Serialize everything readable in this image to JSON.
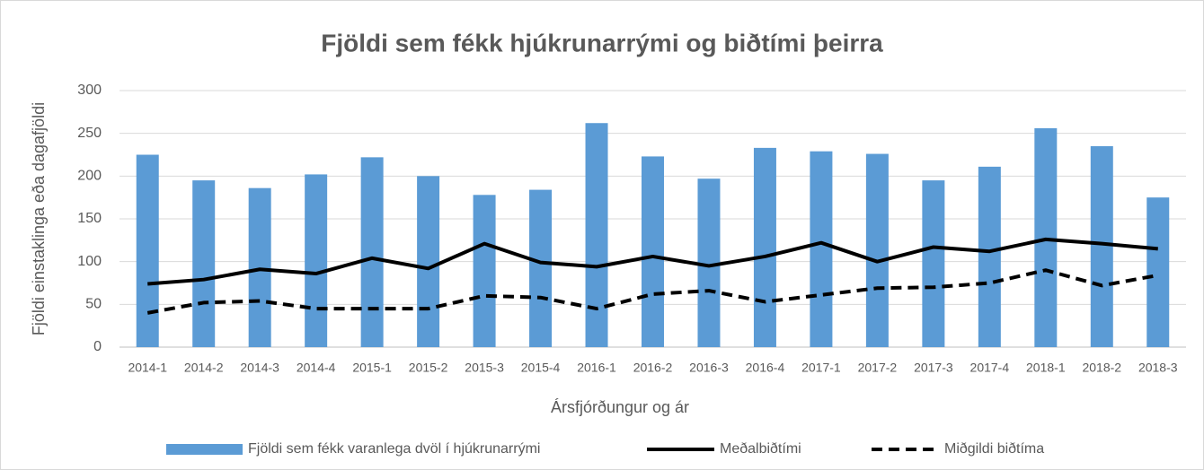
{
  "chart_data": {
    "type": "bar",
    "title": "Fjöldi sem fékk hjúkrunarrými og biðtími þeirra",
    "x_label": "Ársfjórðungur og ár",
    "y_label": "Fjöldi einstaklinga eða dagafjöldi",
    "categories": [
      "2014-1",
      "2014-2",
      "2014-3",
      "2014-4",
      "2015-1",
      "2015-2",
      "2015-3",
      "2015-4",
      "2016-1",
      "2016-2",
      "2016-3",
      "2016-4",
      "2017-1",
      "2017-2",
      "2017-3",
      "2017-4",
      "2018-1",
      "2018-2",
      "2018-3"
    ],
    "series": [
      {
        "name": "Fjöldi sem fékk varanlega dvöl í hjúkrunarrými",
        "type": "bar",
        "color": "#5b9bd5",
        "values": [
          225,
          195,
          186,
          202,
          222,
          200,
          178,
          184,
          262,
          223,
          197,
          233,
          229,
          226,
          195,
          211,
          256,
          235,
          175
        ]
      },
      {
        "name": "Meðalbiðtími",
        "type": "line",
        "color": "#000000",
        "dash": false,
        "values": [
          74,
          79,
          91,
          86,
          104,
          92,
          121,
          99,
          94,
          106,
          95,
          106,
          122,
          100,
          117,
          112,
          126,
          121,
          115
        ]
      },
      {
        "name": "Miðgildi biðtíma",
        "type": "line",
        "color": "#000000",
        "dash": true,
        "values": [
          40,
          52,
          54,
          45,
          45,
          45,
          60,
          58,
          45,
          62,
          66,
          53,
          61,
          69,
          70,
          75,
          90,
          72,
          84
        ]
      }
    ],
    "ylim": [
      0,
      300
    ],
    "yticks": [
      0,
      50,
      100,
      150,
      200,
      250,
      300
    ],
    "grid": true,
    "legend": "bottom"
  }
}
